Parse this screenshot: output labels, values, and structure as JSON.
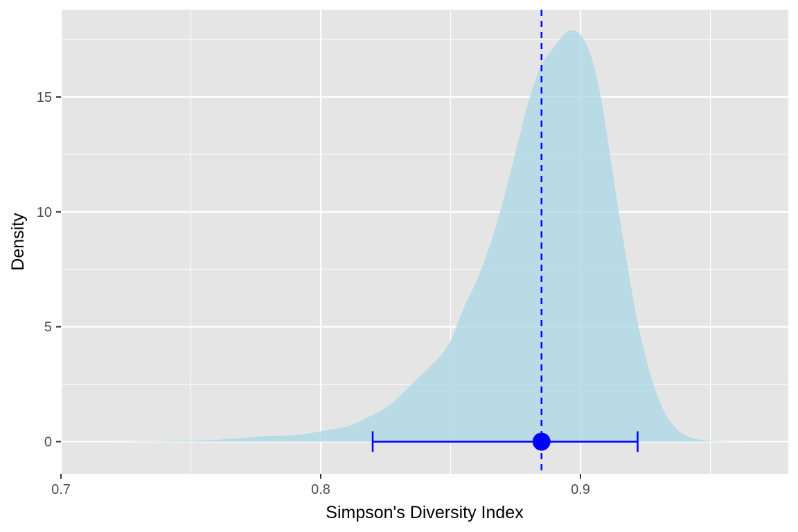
{
  "chart_data": {
    "type": "area",
    "title": "",
    "xlabel": "Simpson's Diversity Index",
    "ylabel": "Density",
    "xlim": [
      0.7,
      0.98
    ],
    "ylim": [
      -1.4,
      18.8
    ],
    "x_ticks": [
      0.7,
      0.8,
      0.9
    ],
    "x_tick_labels": [
      "0.7",
      "0.8",
      "0.9"
    ],
    "y_ticks": [
      0,
      5,
      10,
      15
    ],
    "y_tick_labels": [
      "0",
      "5",
      "10",
      "15"
    ],
    "grid": true,
    "legend": "none",
    "colors": {
      "panel_bg": "#e5e5e5",
      "grid": "#ffffff",
      "density_fill": "#add8e6",
      "interval": "#0000ff"
    },
    "density": {
      "x": [
        0.705,
        0.72,
        0.74,
        0.755,
        0.765,
        0.772,
        0.78,
        0.79,
        0.8,
        0.81,
        0.818,
        0.826,
        0.835,
        0.845,
        0.85,
        0.855,
        0.86,
        0.865,
        0.87,
        0.875,
        0.88,
        0.885,
        0.89,
        0.894,
        0.897,
        0.9,
        0.904,
        0.908,
        0.912,
        0.917,
        0.922,
        0.927,
        0.932,
        0.937,
        0.942,
        0.946,
        0.95,
        0.955,
        0.962
      ],
      "y": [
        0.0,
        0.0,
        0.03,
        0.06,
        0.12,
        0.18,
        0.25,
        0.28,
        0.45,
        0.65,
        1.05,
        1.55,
        2.5,
        3.6,
        4.4,
        5.8,
        7.0,
        8.5,
        10.4,
        12.6,
        14.8,
        16.4,
        17.2,
        17.75,
        17.9,
        17.7,
        16.8,
        14.9,
        12.0,
        8.4,
        5.2,
        2.9,
        1.35,
        0.55,
        0.2,
        0.08,
        0.03,
        0.01,
        0.0
      ]
    },
    "point_estimate": 0.885,
    "interval": [
      0.82,
      0.922
    ]
  }
}
